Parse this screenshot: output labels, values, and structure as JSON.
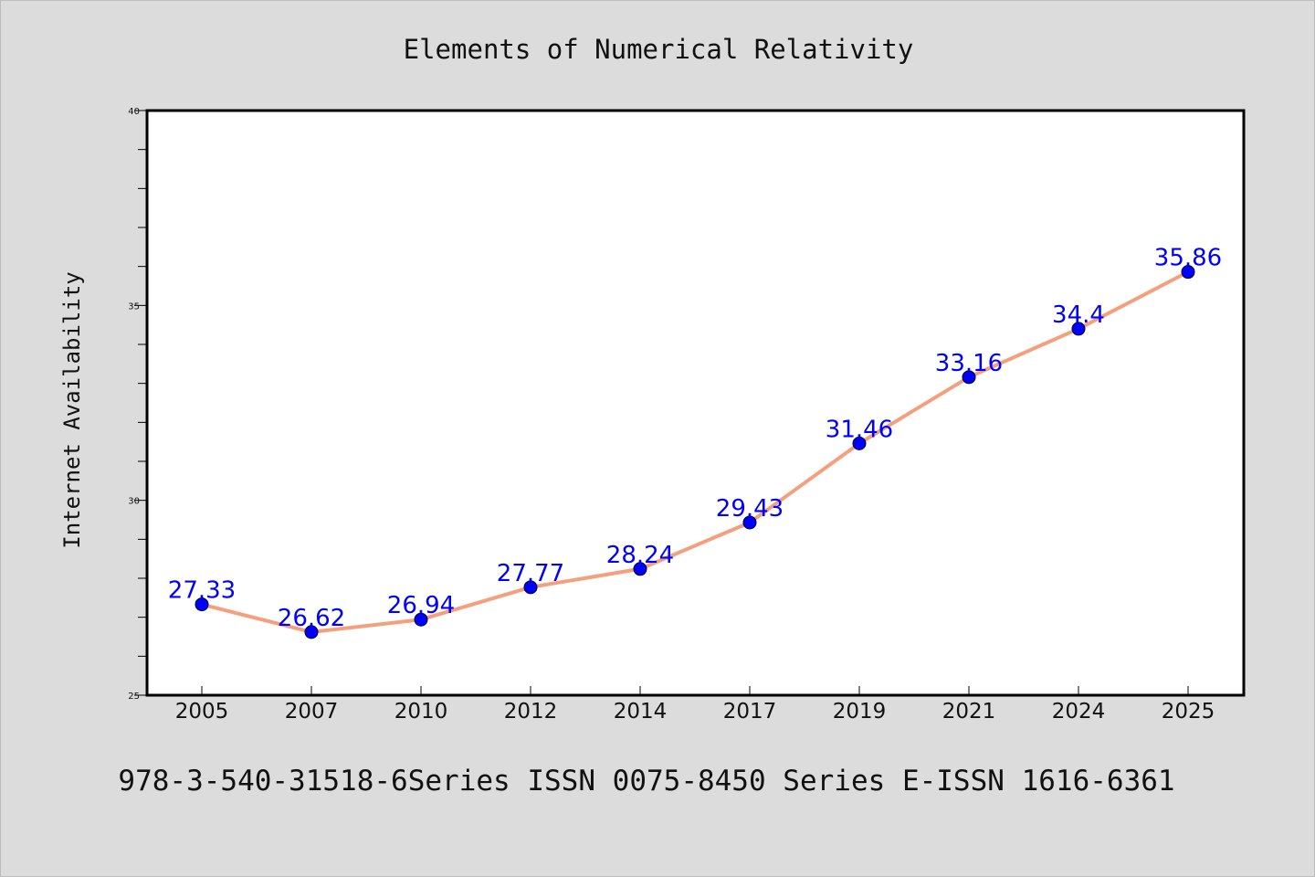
{
  "chart_data": {
    "type": "line",
    "title": "Elements of Numerical Relativity",
    "xlabel": "",
    "ylabel": "Internet Availability",
    "categories": [
      "2005",
      "2007",
      "2010",
      "2012",
      "2014",
      "2017",
      "2019",
      "2021",
      "2024",
      "2025"
    ],
    "series": [
      {
        "values": [
          27.33,
          26.62,
          26.94,
          27.77,
          28.24,
          29.43,
          31.46,
          33.16,
          34.4,
          35.86
        ],
        "data_labels": [
          "27.33",
          "26.62",
          "26.94",
          "27.77",
          "28.24",
          "29.43",
          "31.46",
          "33.16",
          "34.4",
          "35.86"
        ],
        "line_color": "#f4a07f",
        "marker_color": "#0000ff"
      }
    ],
    "ylim": [
      25,
      40
    ],
    "yticks": [
      "25",
      "30",
      "35",
      "40"
    ],
    "grid": false,
    "legend": "none"
  },
  "footer": {
    "text": "978-3-540-31518-6Series ISSN 0075-8450 Series E-ISSN 1616-6361"
  },
  "colors": {
    "background": "#dcdcdc",
    "plot_background": "#ffffff",
    "line": "#f4a07f",
    "marker": "#0000ff",
    "data_label": "#0000ff"
  }
}
